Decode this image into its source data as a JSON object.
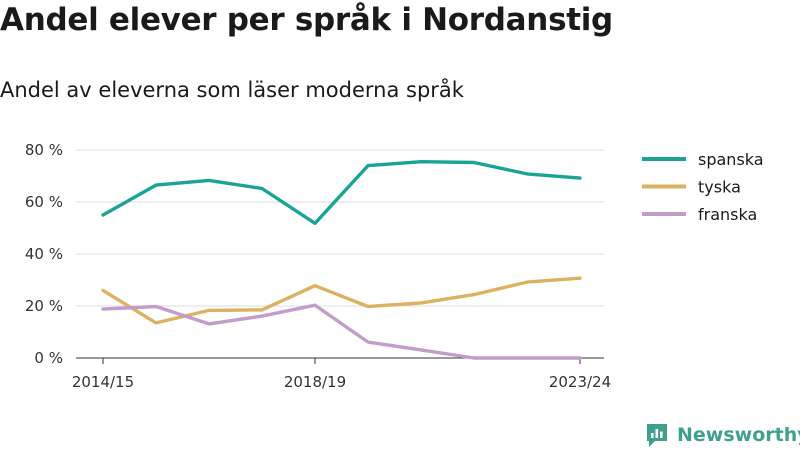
{
  "header": {
    "title": "Andel elever per språk i Nordanstig",
    "subtitle": "Andel av eleverna som läser moderna språk"
  },
  "brand": {
    "name": "Newsworthy",
    "icon": "newsworthy-logo-icon",
    "color": "#3fa090"
  },
  "chart_data": {
    "type": "line",
    "title": "Andel elever per språk i Nordanstig",
    "subtitle": "Andel av eleverna som läser moderna språk",
    "x": [
      "2014/15",
      "2015/16",
      "2016/17",
      "2017/18",
      "2018/19",
      "2019/20",
      "2020/21",
      "2021/22",
      "2022/23",
      "2023/24"
    ],
    "x_tick_labels": [
      "2014/15",
      "2018/19",
      "2023/24"
    ],
    "x_tick_indices": [
      0,
      4,
      9
    ],
    "y_ticks": [
      0,
      20,
      40,
      60,
      80
    ],
    "y_tick_labels": [
      "0 %",
      "20 %",
      "40 %",
      "60 %",
      "80 %"
    ],
    "ylim": [
      0,
      80
    ],
    "grid": true,
    "legend_position": "right",
    "series": [
      {
        "name": "spanska",
        "color": "#1aa396",
        "values": [
          55,
          66.5,
          68.3,
          65.2,
          51.8,
          74,
          75.5,
          75.2,
          70.8,
          69.2
        ]
      },
      {
        "name": "tyska",
        "color": "#dcb262",
        "values": [
          26,
          13.5,
          18.3,
          18.5,
          27.8,
          19.8,
          21.2,
          24.4,
          29.2,
          30.7
        ]
      },
      {
        "name": "franska",
        "color": "#c39ccc",
        "values": [
          18.8,
          19.8,
          13.1,
          16.1,
          20.3,
          6.1,
          3.1,
          0,
          0,
          0
        ]
      }
    ]
  }
}
